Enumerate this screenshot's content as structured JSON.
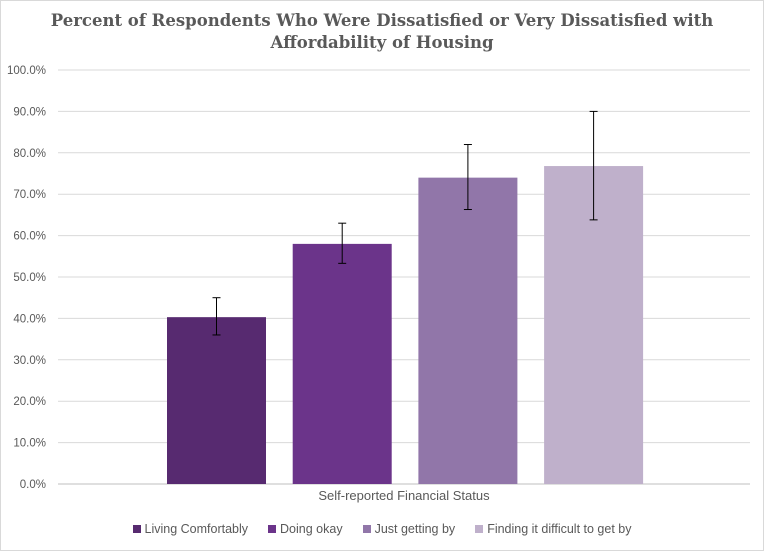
{
  "chart_data": {
    "type": "bar",
    "title_lines": [
      "Percent of Respondents Who Were Dissatisfied or Very Dissatisfied with",
      "Affordability of Housing"
    ],
    "xlabel": "Self-reported Financial Status",
    "ylabel": "",
    "ylim": [
      0,
      100
    ],
    "yticks": [
      "0.0%",
      "10.0%",
      "20.0%",
      "30.0%",
      "40.0%",
      "50.0%",
      "60.0%",
      "70.0%",
      "80.0%",
      "90.0%",
      "100.0%"
    ],
    "grid": true,
    "legend_position": "bottom",
    "series": [
      {
        "name": "Living Comfortably",
        "value": 40.3,
        "error_low": 36.0,
        "error_high": 45.0,
        "color": "#572a70"
      },
      {
        "name": "Doing okay",
        "value": 58.0,
        "error_low": 53.3,
        "error_high": 63.0,
        "color": "#6b348a"
      },
      {
        "name": "Just getting by",
        "value": 74.0,
        "error_low": 66.3,
        "error_high": 82.0,
        "color": "#9176a9"
      },
      {
        "name": "Finding it difficult to get by",
        "value": 76.8,
        "error_low": 63.8,
        "error_high": 90.0,
        "color": "#bfb0cb"
      }
    ]
  }
}
